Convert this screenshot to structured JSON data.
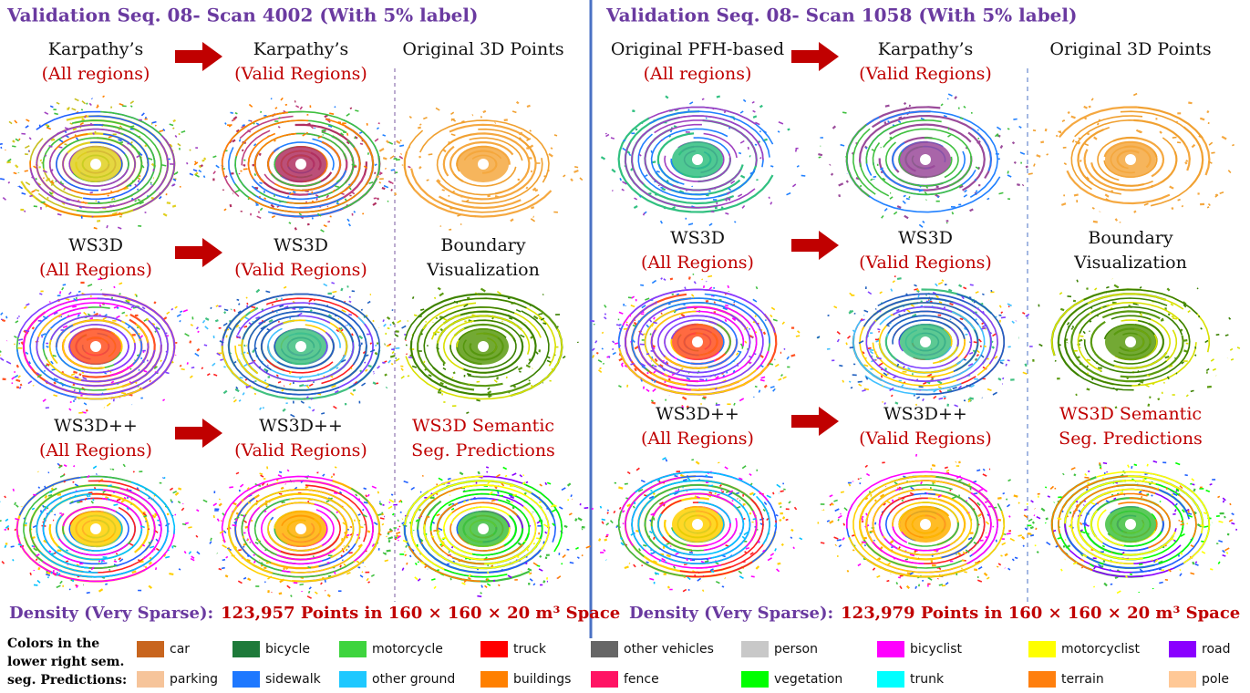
{
  "panels": [
    {
      "title": "Validation Seq. 08- Scan 4002 (With 5% label)",
      "cells": [
        {
          "lines": [
            "Karpathy’s",
            "(All regions)"
          ]
        },
        {
          "lines": [
            "Karpathy’s",
            "(Valid Regions)"
          ]
        },
        {
          "lines": [
            "Original 3D Points"
          ]
        },
        {
          "lines": [
            "WS3D",
            "(All Regions)"
          ]
        },
        {
          "lines": [
            "WS3D",
            "(Valid Regions)"
          ]
        },
        {
          "lines": [
            "Boundary",
            "Visualization"
          ]
        },
        {
          "lines": [
            "WS3D++",
            "(All Regions)"
          ]
        },
        {
          "lines": [
            "WS3D++",
            "(Valid Regions)"
          ]
        },
        {
          "lines": [
            "WS3D Semantic",
            "Seg. Predictions"
          ]
        }
      ],
      "density": {
        "label": "Density (Very Sparse):",
        "text": "123,957 Points in 160 × 160 × 20 m³ Space"
      }
    },
    {
      "title": "Validation Seq. 08- Scan 1058 (With 5% label)",
      "cells": [
        {
          "lines": [
            "Original PFH-based",
            "(All regions)"
          ]
        },
        {
          "lines": [
            "Karpathy’s",
            "(Valid Regions)"
          ]
        },
        {
          "lines": [
            "Original 3D Points"
          ]
        },
        {
          "lines": [
            "WS3D",
            "(All Regions)"
          ]
        },
        {
          "lines": [
            "WS3D",
            "(Valid Regions)"
          ]
        },
        {
          "lines": [
            "Boundary",
            "Visualization"
          ]
        },
        {
          "lines": [
            "WS3D++",
            "(All Regions)"
          ]
        },
        {
          "lines": [
            "WS3D++",
            "(Valid Regions)"
          ]
        },
        {
          "lines": [
            "WS3D Semantic",
            "Seg. Predictions"
          ]
        }
      ],
      "density": {
        "label": "Density (Very Sparse):",
        "text": "123,979 Points in 160 × 160 × 20 m³ Space"
      }
    }
  ],
  "legend": {
    "title": [
      "Colors in the",
      "lower right sem.",
      "seg. Predictions:"
    ],
    "items": [
      {
        "label": "car",
        "color": "#c8651e"
      },
      {
        "label": "bicycle",
        "color": "#1e7a3a"
      },
      {
        "label": "motorcycle",
        "color": "#3ed43e"
      },
      {
        "label": "truck",
        "color": "#ff0000"
      },
      {
        "label": "other vehicles",
        "color": "#666666"
      },
      {
        "label": "person",
        "color": "#c8c8c8"
      },
      {
        "label": "bicyclist",
        "color": "#ff00ff"
      },
      {
        "label": "motorcyclist",
        "color": "#ffff00"
      },
      {
        "label": "road",
        "color": "#8a00ff"
      },
      {
        "label": "parking",
        "color": "#f6c49a"
      },
      {
        "label": "sidewalk",
        "color": "#1e78ff"
      },
      {
        "label": "other ground",
        "color": "#1ec8ff"
      },
      {
        "label": "buildings",
        "color": "#ff8000"
      },
      {
        "label": "fence",
        "color": "#ff1464"
      },
      {
        "label": "vegetation",
        "color": "#00ff00"
      },
      {
        "label": "trunk",
        "color": "#00ffff"
      },
      {
        "label": "terrain",
        "color": "#ff7f0e"
      },
      {
        "label": "pole",
        "color": "#ffc896"
      }
    ]
  }
}
